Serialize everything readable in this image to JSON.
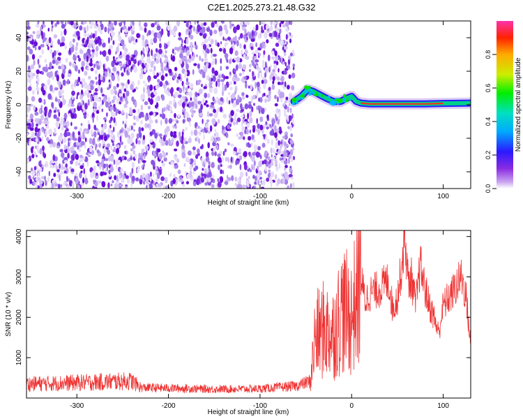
{
  "title": "C2E1.2025.273.21.48.G32",
  "colors": {
    "signal_line": "#ee3333",
    "noise_hue": "#7a2ae0"
  },
  "chart_data": [
    {
      "type": "heatmap",
      "xlabel": "Height of straight line (km)",
      "ylabel": "Frequency (Hz)",
      "xlim": [
        -355,
        130
      ],
      "ylim": [
        -50,
        50
      ],
      "xticks": [
        -300,
        -200,
        -100,
        0,
        100
      ],
      "yticks": [
        -40,
        -20,
        0,
        20,
        40
      ],
      "xtick_labels": [
        "-300",
        "-200",
        "-100",
        "0",
        "100"
      ],
      "ytick_labels": [
        "-40",
        "-20",
        "0",
        "20",
        "40"
      ],
      "noise_region_x": [
        -355,
        -63
      ],
      "signal_track": [
        {
          "x": -63,
          "y": 2
        },
        {
          "x": -55,
          "y": 5
        },
        {
          "x": -48,
          "y": 9
        },
        {
          "x": -42,
          "y": 8
        },
        {
          "x": -35,
          "y": 6
        },
        {
          "x": -28,
          "y": 4
        },
        {
          "x": -20,
          "y": 2
        },
        {
          "x": -12,
          "y": 2
        },
        {
          "x": -5,
          "y": 4
        },
        {
          "x": 0,
          "y": 5
        },
        {
          "x": 5,
          "y": 2
        },
        {
          "x": 10,
          "y": 1
        },
        {
          "x": 20,
          "y": 0.5
        },
        {
          "x": 40,
          "y": 0.5
        },
        {
          "x": 60,
          "y": 0.5
        },
        {
          "x": 80,
          "y": 0.5
        },
        {
          "x": 100,
          "y": 0.8
        },
        {
          "x": 130,
          "y": 1
        }
      ],
      "colorbar": {
        "label": "Normalized spectral amplitude",
        "range": [
          0,
          1
        ],
        "ticks": [
          0.0,
          0.2,
          0.4,
          0.6,
          0.8
        ],
        "tick_labels": [
          "0.0",
          "0.2",
          "0.4",
          "0.6",
          "0.8"
        ]
      }
    },
    {
      "type": "line",
      "xlabel": "Height of straight line (km)",
      "ylabel": "SNR (10 * v/v)",
      "xlim": [
        -355,
        130
      ],
      "ylim": [
        0,
        4150
      ],
      "xticks": [
        -300,
        -200,
        -100,
        0,
        100
      ],
      "yticks": [
        1000,
        2000,
        3000,
        4000
      ],
      "xtick_labels": [
        "-300",
        "-200",
        "-100",
        "0",
        "100"
      ],
      "ytick_labels": [
        "1000",
        "2000",
        "3000",
        "4000"
      ],
      "series": [
        {
          "x": [
            -355,
            -300,
            -240,
            -230,
            -150,
            -100,
            -60,
            -45,
            -40,
            -30,
            -20,
            -10,
            0,
            10,
            15,
            20,
            30,
            40,
            45,
            50,
            55,
            58,
            62,
            65,
            70,
            75,
            80,
            85,
            90,
            95,
            100,
            110,
            120,
            125,
            130
          ],
          "values": [
            350,
            380,
            420,
            260,
            220,
            230,
            300,
            420,
            1500,
            1700,
            1600,
            2200,
            2000,
            3000,
            2400,
            2600,
            2700,
            2900,
            2200,
            2500,
            3300,
            4050,
            2800,
            3000,
            2300,
            3300,
            2700,
            2300,
            2000,
            1600,
            2300,
            2600,
            3000,
            2500,
            1300
          ]
        }
      ]
    }
  ]
}
